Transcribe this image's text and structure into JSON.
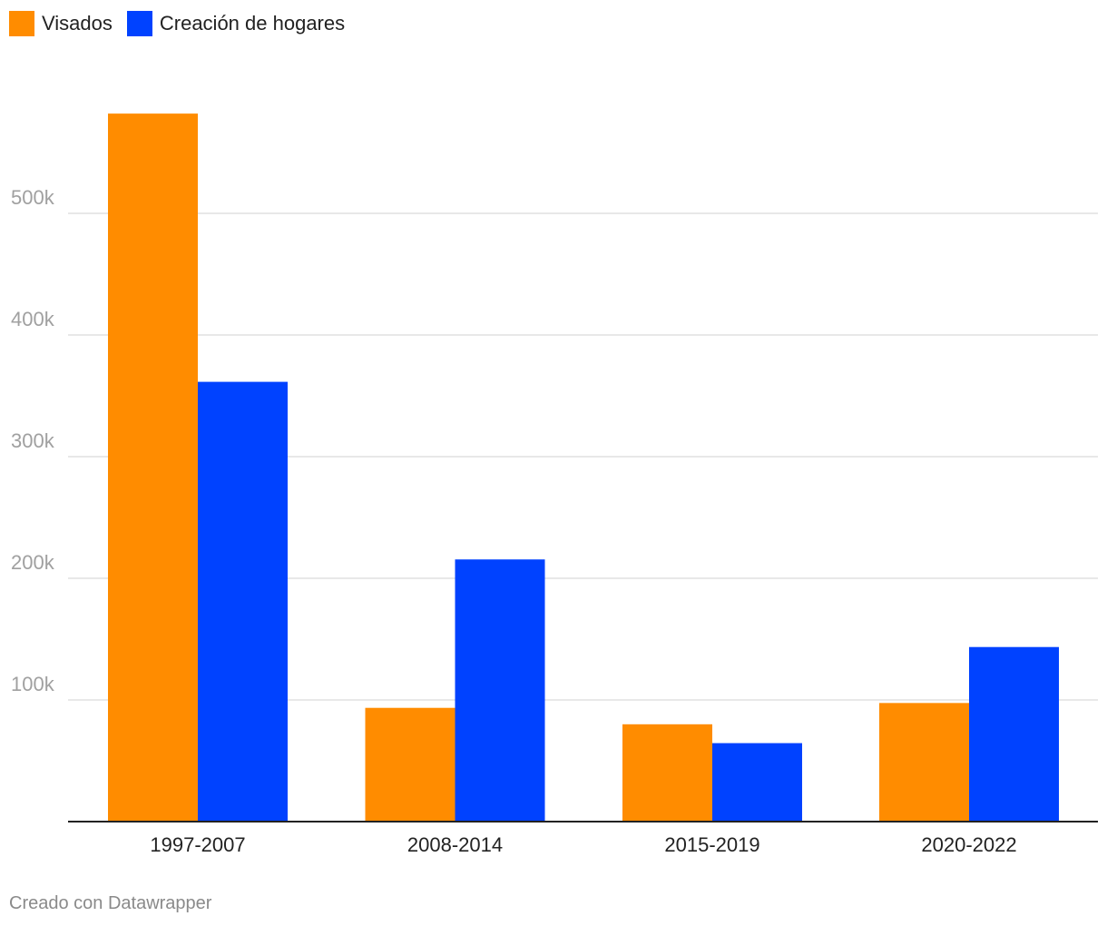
{
  "colors": {
    "visados": "#FF8C00",
    "creacion": "#0042FF",
    "grid": "#e0e0e0",
    "axis": "#222222",
    "tick_text": "#a0a0a0",
    "category_text": "#222222"
  },
  "legend": [
    {
      "label": "Visados",
      "color": "#FF8C00"
    },
    {
      "label": "Creación de hogares",
      "color": "#0042FF"
    }
  ],
  "chart_data": {
    "type": "bar",
    "categories": [
      "1997-2007",
      "2008-2014",
      "2015-2019",
      "2020-2022"
    ],
    "series": [
      {
        "name": "Visados",
        "values": [
          582000,
          93500,
          80000,
          97500
        ]
      },
      {
        "name": "Creación de hogares",
        "values": [
          361500,
          215500,
          64500,
          143500
        ]
      }
    ],
    "yticks": [
      100000,
      200000,
      300000,
      400000,
      500000
    ],
    "ytick_labels": [
      "100k",
      "200k",
      "300k",
      "400k",
      "500k"
    ],
    "ylim": [
      0,
      600000
    ],
    "grid": true,
    "legend_position": "top-left"
  },
  "footer": {
    "credit": "Creado con Datawrapper"
  }
}
